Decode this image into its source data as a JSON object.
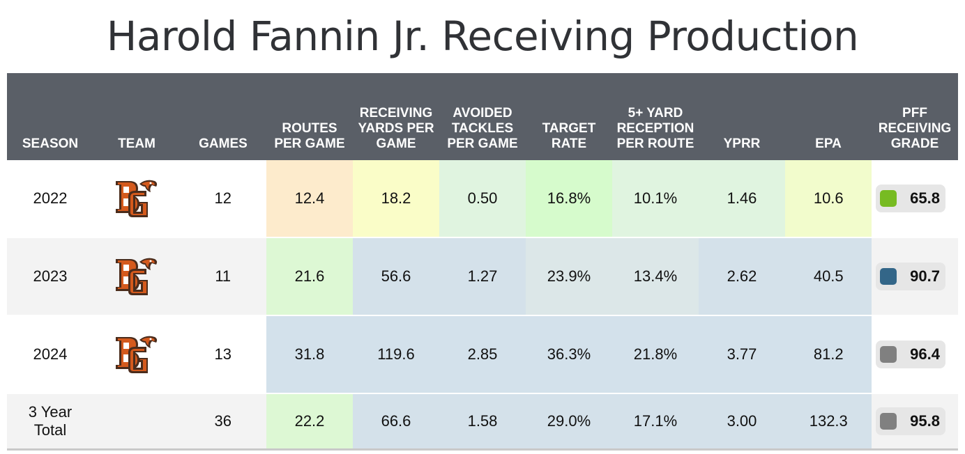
{
  "title": "Harold Fannin Jr. Receiving Production",
  "chart_data": {
    "type": "table",
    "columns": [
      "SEASON",
      "TEAM",
      "GAMES",
      "ROUTES PER GAME",
      "RECEIVING YARDS PER GAME",
      "AVOIDED TACKLES PER GAME",
      "TARGET RATE",
      "5+ YARD RECEPTION PER ROUTE",
      "YPRR",
      "EPA",
      "PFF RECEIVING GRADE"
    ],
    "rows": [
      {
        "season": "2022",
        "team_logo": "bowling-green-falcons-logo",
        "games": "12",
        "stats": [
          "12.4",
          "18.2",
          "0.50",
          "16.8%",
          "10.1%",
          "1.46",
          "10.6"
        ],
        "stat_colors": [
          "#fdebcc",
          "#fafdc8",
          "#e0f4e0",
          "#d6fbcc",
          "#e0f4e0",
          "#e0f4e0",
          "#f2fccc"
        ],
        "grade": "65.8",
        "grade_color": "#77bb22"
      },
      {
        "season": "2023",
        "team_logo": "bowling-green-falcons-logo",
        "games": "11",
        "stats": [
          "21.6",
          "56.6",
          "1.27",
          "23.9%",
          "13.4%",
          "2.62",
          "40.5"
        ],
        "stat_colors": [
          "#ddf8d4",
          "#d4e1ea",
          "#d4e1ea",
          "#dce7e8",
          "#dce7e8",
          "#d4e1ea",
          "#d4e1ea"
        ],
        "grade": "90.7",
        "grade_color": "#336688"
      },
      {
        "season": "2024",
        "team_logo": "bowling-green-falcons-logo",
        "games": "13",
        "stats": [
          "31.8",
          "119.6",
          "2.85",
          "36.3%",
          "21.8%",
          "3.77",
          "81.2"
        ],
        "stat_colors": [
          "#d3e1eb",
          "#d3e1eb",
          "#d3e1eb",
          "#d3e1eb",
          "#d3e1eb",
          "#d3e1eb",
          "#d3e1eb"
        ],
        "grade": "96.4",
        "grade_color": "#808080"
      }
    ],
    "total": {
      "label_line1": "3 Year",
      "label_line2": "Total",
      "games": "36",
      "stats": [
        "22.2",
        "66.6",
        "1.58",
        "29.0%",
        "17.1%",
        "3.00",
        "132.3"
      ],
      "stat_colors": [
        "#ddf8d4",
        "#d4e1ea",
        "#d4e1ea",
        "#d4e1ea",
        "#d4e1ea",
        "#d4e1ea",
        "#d4e1ea"
      ],
      "grade": "95.8",
      "grade_color": "#808080"
    }
  },
  "colors": {
    "header_bg": "#5a5f67",
    "logo_orange": "#d45a1d",
    "logo_brown": "#4a2c1c"
  }
}
